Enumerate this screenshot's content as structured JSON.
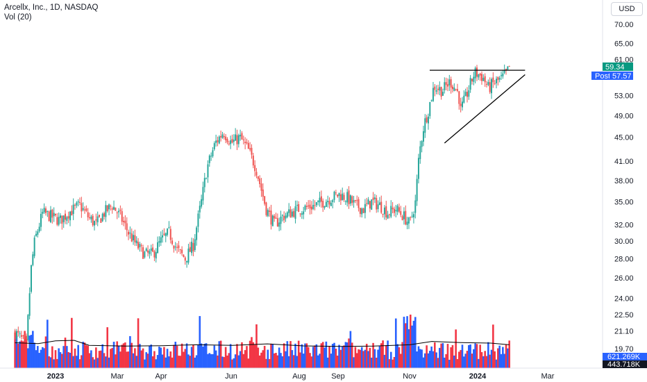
{
  "header": {
    "symbol_line": "Arcellx, Inc., 1D, NASDAQ",
    "indicator_line": "Vol (20)",
    "currency": "USD"
  },
  "badges": {
    "last_price": "59.34",
    "post_label": "Post",
    "post_price": "57.57",
    "volume_value": "621.269K",
    "volume_ma": "443.718K"
  },
  "colors": {
    "up": "#26a69a",
    "down": "#ef5350",
    "vol_up": "#2962ff",
    "vol_down": "#f23645",
    "post_badge": "#2962ff",
    "last_badge": "#089981"
  },
  "chart_data": {
    "type": "candlestick",
    "scale": "log",
    "y_ticks": [
      "70.00",
      "65.00",
      "61.00",
      "57.00",
      "53.00",
      "49.00",
      "45.00",
      "41.00",
      "38.00",
      "35.00",
      "32.00",
      "30.00",
      "28.00",
      "26.00",
      "24.00",
      "22.50",
      "21.10",
      "19.70"
    ],
    "x_ticks": [
      "2023",
      "Mar",
      "Apr",
      "Jun",
      "Aug",
      "Sep",
      "Nov",
      "2024",
      "Mar"
    ],
    "price_path": [
      [
        "2022-11-25",
        21.0
      ],
      [
        "2022-12-05",
        20.0
      ],
      [
        "2022-12-09",
        27.0
      ],
      [
        "2022-12-12",
        30.0
      ],
      [
        "2022-12-19",
        33.5
      ],
      [
        "2023-01-03",
        32.5
      ],
      [
        "2023-01-10",
        33.5
      ],
      [
        "2023-01-20",
        34.5
      ],
      [
        "2023-01-27",
        33.0
      ],
      [
        "2023-02-03",
        32.0
      ],
      [
        "2023-02-10",
        33.5
      ],
      [
        "2023-02-17",
        34.5
      ],
      [
        "2023-02-24",
        33.0
      ],
      [
        "2023-03-03",
        31.0
      ],
      [
        "2023-03-10",
        29.5
      ],
      [
        "2023-03-17",
        28.5
      ],
      [
        "2023-03-24",
        28.5
      ],
      [
        "2023-03-31",
        30.0
      ],
      [
        "2023-04-07",
        31.0
      ],
      [
        "2023-04-14",
        29.0
      ],
      [
        "2023-04-21",
        28.0
      ],
      [
        "2023-04-28",
        29.5
      ],
      [
        "2023-05-05",
        35.0
      ],
      [
        "2023-05-10",
        40.0
      ],
      [
        "2023-05-17",
        44.0
      ],
      [
        "2023-05-24",
        46.0
      ],
      [
        "2023-05-31",
        44.0
      ],
      [
        "2023-06-07",
        45.0
      ],
      [
        "2023-06-14",
        43.0
      ],
      [
        "2023-06-21",
        40.0
      ],
      [
        "2023-06-26",
        36.5
      ],
      [
        "2023-06-30",
        34.0
      ],
      [
        "2023-07-07",
        32.0
      ],
      [
        "2023-07-14",
        33.0
      ],
      [
        "2023-07-21",
        33.5
      ],
      [
        "2023-07-28",
        34.0
      ],
      [
        "2023-08-04",
        34.2
      ],
      [
        "2023-08-11",
        34.5
      ],
      [
        "2023-08-18",
        35.0
      ],
      [
        "2023-08-25",
        35.5
      ],
      [
        "2023-09-01",
        36.0
      ],
      [
        "2023-09-08",
        35.5
      ],
      [
        "2023-09-15",
        34.5
      ],
      [
        "2023-09-22",
        34.0
      ],
      [
        "2023-09-29",
        35.0
      ],
      [
        "2023-10-06",
        34.5
      ],
      [
        "2023-10-13",
        33.5
      ],
      [
        "2023-10-20",
        34.0
      ],
      [
        "2023-10-27",
        33.0
      ],
      [
        "2023-11-01",
        32.0
      ],
      [
        "2023-11-06",
        35.0
      ],
      [
        "2023-11-09",
        42.0
      ],
      [
        "2023-11-13",
        47.0
      ],
      [
        "2023-11-17",
        50.0
      ],
      [
        "2023-11-22",
        55.0
      ],
      [
        "2023-11-29",
        54.0
      ],
      [
        "2023-12-06",
        56.0
      ],
      [
        "2023-12-13",
        53.5
      ],
      [
        "2023-12-15",
        50.0
      ],
      [
        "2023-12-20",
        53.0
      ],
      [
        "2023-12-27",
        58.0
      ],
      [
        "2024-01-03",
        57.0
      ],
      [
        "2024-01-08",
        54.5
      ],
      [
        "2024-01-12",
        55.5
      ],
      [
        "2024-01-19",
        56.5
      ],
      [
        "2024-01-24",
        58.0
      ],
      [
        "2024-01-26",
        59.34
      ]
    ],
    "annotations": {
      "resistance_level": 58.5,
      "resistance_from": "2023-12-05",
      "resistance_to": "2024-02-05",
      "support_from": [
        "2023-12-01",
        44.0
      ],
      "support_to": [
        "2024-02-05",
        57.5
      ]
    },
    "volume_ma_path": [
      [
        "2022-11-25",
        0.78
      ],
      [
        "2022-12-15",
        0.7
      ],
      [
        "2022-12-30",
        0.95
      ],
      [
        "2023-01-15",
        1.0
      ],
      [
        "2023-01-28",
        0.55
      ],
      [
        "2023-03-01",
        0.48
      ],
      [
        "2023-04-01",
        0.52
      ],
      [
        "2023-05-01",
        0.6
      ],
      [
        "2023-06-01",
        0.55
      ],
      [
        "2023-07-01",
        0.68
      ],
      [
        "2023-08-01",
        0.5
      ],
      [
        "2023-09-01",
        0.45
      ],
      [
        "2023-10-01",
        0.48
      ],
      [
        "2023-11-01",
        0.6
      ],
      [
        "2023-11-20",
        0.9
      ],
      [
        "2023-12-15",
        0.8
      ],
      [
        "2024-01-10",
        0.75
      ],
      [
        "2024-01-26",
        0.6
      ]
    ]
  }
}
